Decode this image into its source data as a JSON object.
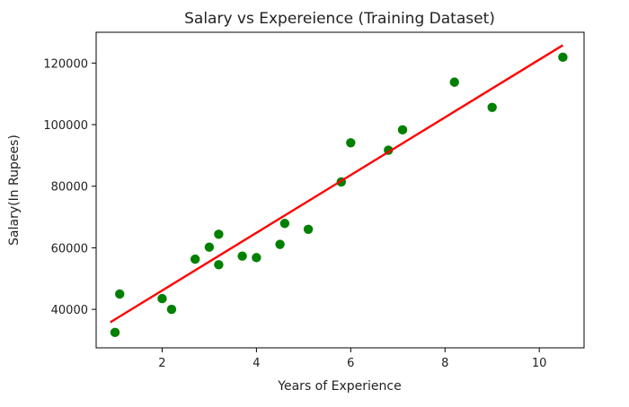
{
  "chart_data": {
    "type": "scatter",
    "title": "Salary vs Expereience (Training Dataset)",
    "xlabel": "Years of Experience",
    "ylabel": "Salary(In Rupees)",
    "xlim": [
      0.6,
      10.95
    ],
    "ylim": [
      27500,
      130000
    ],
    "x_ticks": [
      2,
      4,
      6,
      8,
      10
    ],
    "x_tick_labels": [
      "2",
      "4",
      "6",
      "8",
      "10"
    ],
    "y_ticks": [
      40000,
      60000,
      80000,
      100000,
      120000
    ],
    "y_tick_labels": [
      "40000",
      "60000",
      "80000",
      "100000",
      "120000"
    ],
    "grid": false,
    "series": [
      {
        "kind": "scatter",
        "color": "#008000",
        "points": [
          {
            "x": 1.0,
            "y": 32500
          },
          {
            "x": 1.1,
            "y": 45000
          },
          {
            "x": 2.0,
            "y": 43500
          },
          {
            "x": 2.2,
            "y": 40000
          },
          {
            "x": 2.7,
            "y": 56300
          },
          {
            "x": 3.0,
            "y": 60200
          },
          {
            "x": 3.2,
            "y": 54500
          },
          {
            "x": 3.2,
            "y": 64400
          },
          {
            "x": 3.7,
            "y": 57300
          },
          {
            "x": 4.0,
            "y": 56800
          },
          {
            "x": 4.5,
            "y": 61100
          },
          {
            "x": 4.6,
            "y": 67900
          },
          {
            "x": 5.1,
            "y": 66000
          },
          {
            "x": 5.8,
            "y": 81400
          },
          {
            "x": 6.0,
            "y": 94100
          },
          {
            "x": 6.8,
            "y": 91700
          },
          {
            "x": 7.1,
            "y": 98300
          },
          {
            "x": 8.2,
            "y": 113800
          },
          {
            "x": 9.0,
            "y": 105600
          },
          {
            "x": 10.5,
            "y": 121900
          }
        ]
      },
      {
        "kind": "line",
        "color": "#ff0000",
        "points": [
          {
            "x": 0.9,
            "y": 35800
          },
          {
            "x": 10.5,
            "y": 125800
          }
        ]
      }
    ]
  }
}
